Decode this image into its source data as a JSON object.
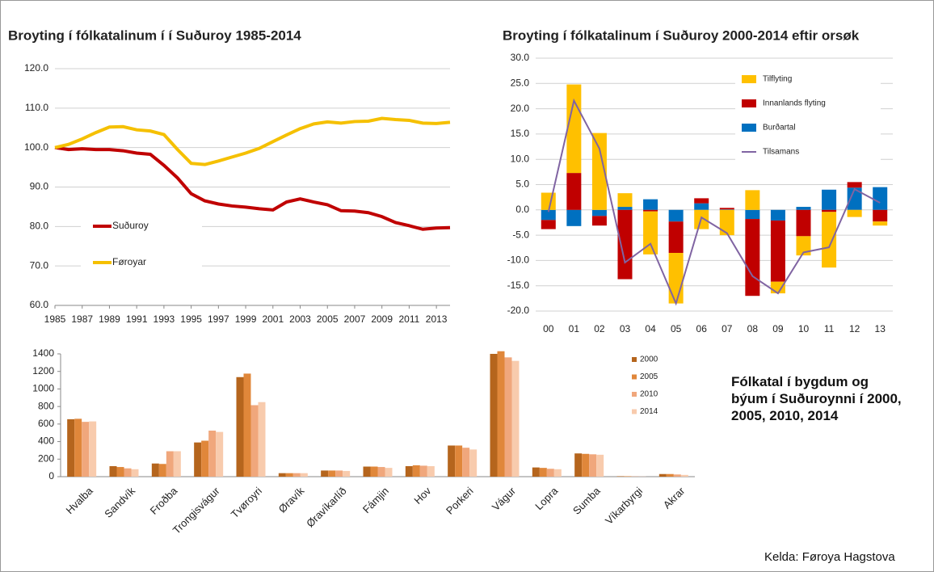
{
  "chart_data": [
    {
      "type": "line",
      "title": "Broyting í fólkatalinum í í Suðuroy 1985-2014",
      "x": [
        1985,
        1986,
        1987,
        1988,
        1989,
        1990,
        1991,
        1992,
        1993,
        1994,
        1995,
        1996,
        1997,
        1998,
        1999,
        2000,
        2001,
        2002,
        2003,
        2004,
        2005,
        2006,
        2007,
        2008,
        2009,
        2010,
        2011,
        2012,
        2013,
        2014
      ],
      "series": [
        {
          "name": "Suðuroy",
          "color": "#c00000",
          "values": [
            100,
            99.5,
            99.7,
            99.5,
            99.5,
            99.2,
            98.6,
            98.3,
            95.5,
            92.3,
            88.3,
            86.5,
            85.7,
            85.2,
            84.9,
            84.5,
            84.2,
            86.2,
            87.0,
            86.2,
            85.5,
            84.0,
            83.9,
            83.5,
            82.5,
            81.0,
            80.2,
            79.3,
            79.6,
            79.7
          ]
        },
        {
          "name": "Føroyar",
          "color": "#f5c000",
          "values": [
            100,
            100.8,
            102.2,
            103.8,
            105.2,
            105.3,
            104.5,
            104.2,
            103.3,
            99.5,
            96.0,
            95.7,
            96.6,
            97.6,
            98.6,
            99.8,
            101.5,
            103.2,
            104.8,
            106.0,
            106.5,
            106.2,
            106.6,
            106.7,
            107.4,
            107.1,
            106.9,
            106.2,
            106.1,
            106.4
          ]
        }
      ],
      "xlim": [
        1985,
        2014
      ],
      "xticks": [
        1985,
        1987,
        1989,
        1991,
        1993,
        1995,
        1997,
        1999,
        2001,
        2003,
        2005,
        2007,
        2009,
        2011,
        2013
      ],
      "ylim": [
        60,
        120
      ],
      "yticks": [
        {
          "value": 60,
          "label": "60.0"
        },
        {
          "value": 70,
          "label": "70.0"
        },
        {
          "value": 80,
          "label": "80.0"
        },
        {
          "value": 90,
          "label": "90.0"
        },
        {
          "value": 100,
          "label": "100.0"
        },
        {
          "value": 110,
          "label": "110.0"
        },
        {
          "value": 120,
          "label": "120.0"
        }
      ],
      "grid": true
    },
    {
      "type": "bar",
      "stacked": true,
      "title": "Broyting í fólkatalinum í Suðuroy 2000-2014 eftir orsøk",
      "categories": [
        "00",
        "01",
        "02",
        "03",
        "04",
        "05",
        "06",
        "07",
        "08",
        "09",
        "10",
        "11",
        "12",
        "13"
      ],
      "series": [
        {
          "name": "Tilflyting",
          "color": "#ffc000",
          "values": [
            3.4,
            17.5,
            15.2,
            2.7,
            -8.5,
            -10.0,
            -3.8,
            -5.0,
            3.9,
            -2.3,
            -3.8,
            -11.0,
            -1.4,
            -0.8
          ]
        },
        {
          "name": "Innanlands flyting",
          "color": "#c00000",
          "values": [
            -1.8,
            7.3,
            -1.9,
            -13.7,
            -0.3,
            -6.2,
            1.0,
            0.3,
            -15.2,
            -12.1,
            -5.2,
            -0.4,
            1.1,
            -2.3
          ]
        },
        {
          "name": "Burðartal",
          "color": "#0070c0",
          "values": [
            -2.0,
            -3.2,
            -1.2,
            0.6,
            2.1,
            -2.3,
            1.3,
            0.1,
            -1.8,
            -2.1,
            0.6,
            4.0,
            4.4,
            4.5
          ]
        },
        {
          "name": "Tilsamans",
          "type": "line",
          "color": "#8064a2",
          "values": [
            -0.4,
            21.6,
            12.1,
            -10.4,
            -6.7,
            -18.5,
            -1.5,
            -4.6,
            -13.1,
            -16.5,
            -8.4,
            -7.4,
            4.1,
            1.4
          ]
        }
      ],
      "ylim": [
        -20,
        30
      ],
      "yticks": [
        {
          "value": -20,
          "label": "-20.0"
        },
        {
          "value": -15,
          "label": "-15.0"
        },
        {
          "value": -10,
          "label": "-10.0"
        },
        {
          "value": -5,
          "label": "-5.0"
        },
        {
          "value": 0,
          "label": "0.0"
        },
        {
          "value": 5,
          "label": "5.0"
        },
        {
          "value": 10,
          "label": "10.0"
        },
        {
          "value": 15,
          "label": "15.0"
        },
        {
          "value": 20,
          "label": "20.0"
        },
        {
          "value": 25,
          "label": "25.0"
        },
        {
          "value": 30,
          "label": "30.0"
        }
      ],
      "grid": true
    },
    {
      "type": "bar",
      "categories": [
        "Hvalba",
        "Sandvík",
        "Froðba",
        "Trongisvágur",
        "Tvøroyri",
        "Øravík",
        "Øravíkarlíð",
        "Fámjin",
        "Hov",
        "Porkeri",
        "Vágur",
        "Lopra",
        "Sumba",
        "Víkarbyrgi",
        "Akrar"
      ],
      "series": [
        {
          "name": "2000",
          "color": "#b5651d",
          "values": [
            655,
            120,
            150,
            390,
            1135,
            40,
            70,
            115,
            120,
            355,
            1400,
            105,
            265,
            5,
            30
          ]
        },
        {
          "name": "2005",
          "color": "#e0873a",
          "values": [
            660,
            110,
            145,
            410,
            1175,
            40,
            70,
            115,
            130,
            355,
            1430,
            100,
            260,
            5,
            30
          ]
        },
        {
          "name": "2010",
          "color": "#f0a77c",
          "values": [
            625,
            95,
            290,
            525,
            815,
            40,
            70,
            110,
            125,
            330,
            1360,
            90,
            255,
            3,
            25
          ]
        },
        {
          "name": "2014",
          "color": "#f8cbad",
          "values": [
            630,
            85,
            290,
            510,
            850,
            40,
            65,
            100,
            120,
            310,
            1320,
            85,
            250,
            2,
            20
          ]
        }
      ],
      "ylim": [
        0,
        1400
      ],
      "yticks": [
        0,
        200,
        400,
        600,
        800,
        1000,
        1200,
        1400
      ],
      "grid": false
    }
  ],
  "caption": "Fólkatal í bygdum og býum í Suðuroynni í 2000, 2005, 2010, 2014",
  "source": "Kelda: Føroya Hagstova"
}
